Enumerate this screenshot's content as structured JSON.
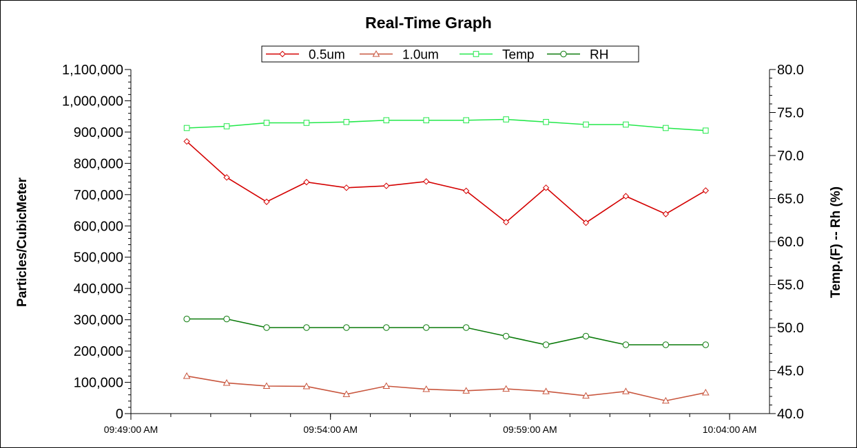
{
  "chart_data": {
    "type": "line",
    "title": "Real-Time Graph",
    "ylabel_left": "Particles/CubicMeter",
    "ylabel_right": "Temp.(F) -- Rh (%)",
    "grid": false,
    "legend_placement": "top-center",
    "x_tick_labels": [
      "09:49:00 AM",
      "09:54:00 AM",
      "09:59:00 AM",
      "10:04:00 AM"
    ],
    "x_range": [
      "09:49:00 AM",
      "10:05:00 AM"
    ],
    "x_tick_minutes": [
      0,
      5,
      10,
      15
    ],
    "x_minor_tick_minutes": [
      0,
      1,
      2,
      3,
      4,
      5,
      6,
      7,
      8,
      9,
      10,
      11,
      12,
      13,
      14,
      15
    ],
    "x_point_minutes": [
      1.4,
      2.4,
      3.4,
      4.4,
      5.4,
      6.4,
      7.4,
      8.4,
      9.4,
      10.4,
      11.4,
      12.4,
      13.4,
      14.4
    ],
    "y_left": {
      "min": 0,
      "max": 1100000,
      "ticks": [
        0,
        100000,
        200000,
        300000,
        400000,
        500000,
        600000,
        700000,
        800000,
        900000,
        1000000,
        1100000
      ],
      "tick_labels": [
        "0",
        "100,000",
        "200,000",
        "300,000",
        "400,000",
        "500,000",
        "600,000",
        "700,000",
        "800,000",
        "900,000",
        "1,000,000",
        "1,100,000"
      ]
    },
    "y_right": {
      "min": 40,
      "max": 80,
      "ticks": [
        40,
        45,
        50,
        55,
        60,
        65,
        70,
        75,
        80
      ],
      "tick_labels": [
        "40.0",
        "45.0",
        "50.0",
        "55.0",
        "60.0",
        "65.0",
        "70.0",
        "75.0",
        "80.0"
      ]
    },
    "series": [
      {
        "name": "0.5um",
        "axis": "left",
        "color": "#d40000",
        "marker": "diamond",
        "values": [
          870000,
          755000,
          677000,
          740000,
          722000,
          728000,
          742000,
          712000,
          612000,
          722000,
          610000,
          695000,
          638000,
          713000
        ]
      },
      {
        "name": "1.0um",
        "axis": "left",
        "color": "#c8553d",
        "marker": "triangle",
        "values": [
          120000,
          98000,
          88000,
          87000,
          62000,
          88000,
          78000,
          73000,
          79000,
          71000,
          57000,
          71000,
          41000,
          67000
        ]
      },
      {
        "name": "Temp",
        "axis": "right",
        "color": "#22e84a",
        "marker": "square",
        "values": [
          73.2,
          73.4,
          73.8,
          73.8,
          73.9,
          74.1,
          74.1,
          74.1,
          74.2,
          73.9,
          73.6,
          73.6,
          73.2,
          72.9
        ]
      },
      {
        "name": "RH",
        "axis": "right",
        "color": "#0a7a0a",
        "marker": "circle",
        "values": [
          51,
          51,
          50,
          50,
          50,
          50,
          50,
          50,
          49,
          48,
          49,
          48,
          48,
          48
        ]
      }
    ]
  }
}
